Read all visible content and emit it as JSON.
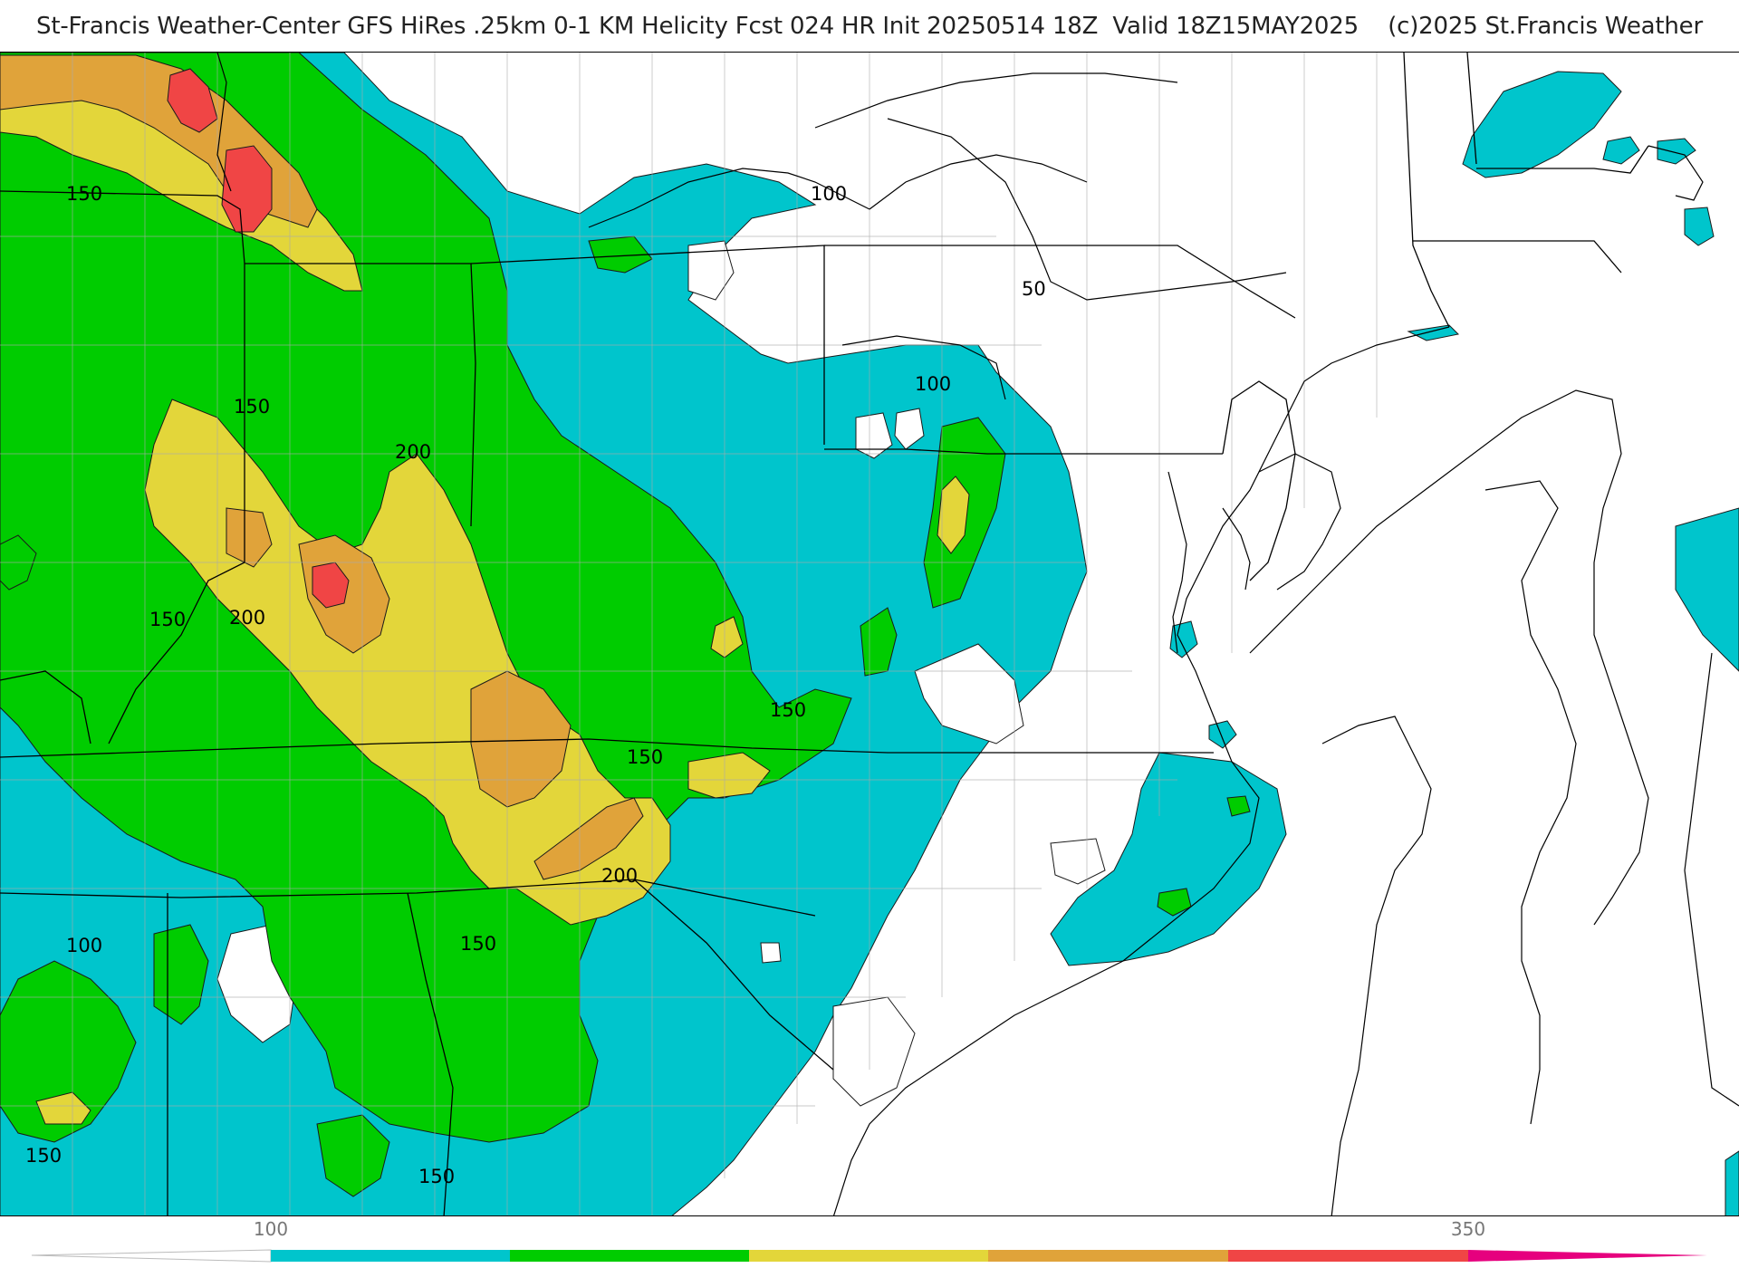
{
  "header": {
    "title": "St-Francis Weather-Center GFS HiRes .25km 0-1 KM Helicity Fcst 024 HR Init 20250514 18Z  Valid 18Z15MAY2025    (c)2025 St.Francis Weather"
  },
  "colors": {
    "cyan": "#00c5cc",
    "green": "#00cc00",
    "yellow": "#e3d63a",
    "orange": "#e0a33a",
    "red": "#f04545",
    "magenta": "#e6007e",
    "land_background": "#ffffff",
    "boundary_line": "#000000",
    "county_line": "#aaaaaa"
  },
  "contour_labels": {
    "l1": "150",
    "l2": "100",
    "l3": "50",
    "l4": "100",
    "l5": "150",
    "l6": "200",
    "l7": "150",
    "l8": "200",
    "l9": "150",
    "l10": "150",
    "l11": "200",
    "l12": "150",
    "l13": "100",
    "l14": "150",
    "l15": "150"
  },
  "colorbar": {
    "label_low": "100",
    "label_high": "350",
    "bins": [
      "<100",
      "100-150",
      "150-200",
      "200-250",
      "250-300",
      "300-350",
      ">350"
    ]
  }
}
